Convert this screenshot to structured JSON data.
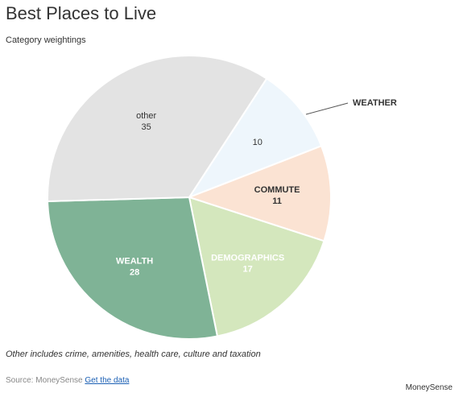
{
  "chart_data": {
    "type": "pie",
    "title": "Best Places to Live",
    "subtitle": "Category weightings",
    "slices": [
      {
        "label": "",
        "value": 10,
        "color": "#eef6fc",
        "external_label": "WEATHER"
      },
      {
        "label": "COMMUTE",
        "value": 11,
        "color": "#fbe3d3"
      },
      {
        "label": "DEMOGRAPHICS",
        "value": 17,
        "color": "#d4e7bd"
      },
      {
        "label": "WEALTH",
        "value": 28,
        "color": "#7fb396"
      },
      {
        "label": "other",
        "value": 35,
        "color": "#e3e3e3"
      }
    ]
  },
  "note": "Other includes crime, amenities, health care, culture and taxation",
  "source": {
    "prefix": "Source: MoneySense",
    "link_label": "Get the data"
  },
  "credit": "MoneySense"
}
